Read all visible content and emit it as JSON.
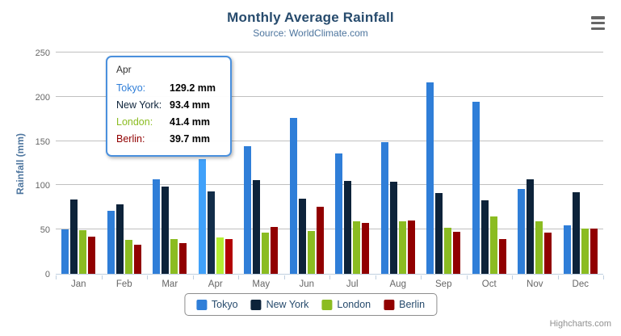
{
  "title": "Monthly Average Rainfall",
  "subtitle": "Source: WorldClimate.com",
  "credits": "Highcharts.com",
  "menu_icon": "hamburger-export-menu",
  "chart_data": {
    "type": "bar",
    "title": "Monthly Average Rainfall",
    "subtitle": "Source: WorldClimate.com",
    "xlabel": "",
    "ylabel": "Rainfall (mm)",
    "ylim": [
      0,
      250
    ],
    "yticks": [
      0,
      50,
      100,
      150,
      200,
      250
    ],
    "grid": true,
    "legend_position": "bottom",
    "hovered_category_index": 3,
    "categories": [
      "Jan",
      "Feb",
      "Mar",
      "Apr",
      "May",
      "Jun",
      "Jul",
      "Aug",
      "Sep",
      "Oct",
      "Nov",
      "Dec"
    ],
    "series": [
      {
        "name": "Tokyo",
        "color": "#2f7ed8",
        "values": [
          49.9,
          71.5,
          106.4,
          129.2,
          144.0,
          176.0,
          135.6,
          148.5,
          216.4,
          194.1,
          95.6,
          54.4
        ]
      },
      {
        "name": "New York",
        "color": "#0d233a",
        "values": [
          83.6,
          78.8,
          98.5,
          93.4,
          106.0,
          84.5,
          105.0,
          104.3,
          91.2,
          83.5,
          106.6,
          92.3
        ]
      },
      {
        "name": "London",
        "color": "#8bbc21",
        "values": [
          48.9,
          38.8,
          39.3,
          41.4,
          47.0,
          48.3,
          59.0,
          59.6,
          52.4,
          65.2,
          59.3,
          51.2
        ]
      },
      {
        "name": "Berlin",
        "color": "#910000",
        "values": [
          42.4,
          33.2,
          34.5,
          39.7,
          52.6,
          75.5,
          57.4,
          60.4,
          47.6,
          39.1,
          46.8,
          51.1
        ]
      }
    ]
  },
  "legend": {
    "items": [
      {
        "label": "Tokyo",
        "color": "#2f7ed8"
      },
      {
        "label": "New York",
        "color": "#0d233a"
      },
      {
        "label": "London",
        "color": "#8bbc21"
      },
      {
        "label": "Berlin",
        "color": "#910000"
      }
    ]
  },
  "tooltip": {
    "header": "Apr",
    "border_color": "#4a90dd",
    "rows": [
      {
        "label": "Tokyo:",
        "value": "129.2 mm",
        "color": "#2f7ed8"
      },
      {
        "label": "New York:",
        "value": "93.4 mm",
        "color": "#0d233a"
      },
      {
        "label": "London:",
        "value": "41.4 mm",
        "color": "#8bbc21"
      },
      {
        "label": "Berlin:",
        "value": "39.7 mm",
        "color": "#910000"
      }
    ]
  }
}
